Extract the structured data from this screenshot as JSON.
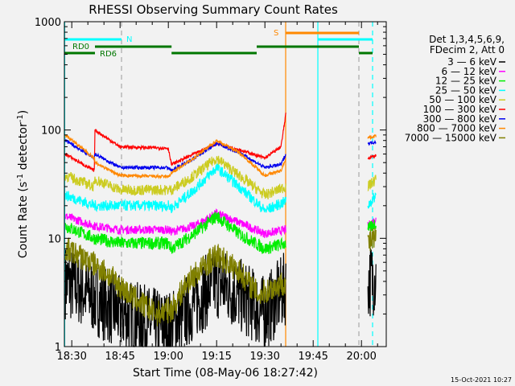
{
  "chart_data": {
    "type": "line",
    "title": "RHESSI Observing Summary Count Rates",
    "xlabel": "Start Time (08-May-06 18:27:42)",
    "ylabel_main": "Count Rate (s",
    "ylabel_sup1": "-1",
    "ylabel_mid": " detector",
    "ylabel_sup2": "-1",
    "ylabel_end": ")",
    "yscale": "log",
    "ylim": [
      1,
      1000
    ],
    "y_ticks": [
      {
        "v": 1,
        "label": "1"
      },
      {
        "v": 10,
        "label": "10"
      },
      {
        "v": 100,
        "label": "100"
      },
      {
        "v": 1000,
        "label": "1000"
      }
    ],
    "x_unit": "minutes after 18:00",
    "xlim": [
      27.7,
      127.7
    ],
    "x_ticks": [
      {
        "t": 30,
        "label": "18:30"
      },
      {
        "t": 45,
        "label": "18:45"
      },
      {
        "t": 60,
        "label": "19:00"
      },
      {
        "t": 75,
        "label": "19:15"
      },
      {
        "t": 90,
        "label": "19:30"
      },
      {
        "t": 105,
        "label": "19:45"
      },
      {
        "t": 120,
        "label": "20:00"
      }
    ],
    "legend_header": [
      "Det 1,3,4,5,6,9,",
      "FDecim 2, Att 0"
    ],
    "legend_position": "right",
    "data_segments": [
      [
        28,
        96.5
      ],
      [
        122,
        124.5
      ]
    ],
    "series": [
      {
        "name": "3 - 6 keV",
        "color": "#000000",
        "noise": 0.35,
        "key": [
          [
            28,
            4
          ],
          [
            36,
            3
          ],
          [
            45,
            2
          ],
          [
            55,
            1.6
          ],
          [
            61,
            1.5
          ],
          [
            68,
            2.5
          ],
          [
            75,
            4
          ],
          [
            82,
            3
          ],
          [
            90,
            2
          ],
          [
            96.5,
            3.5
          ],
          [
            122,
            4
          ],
          [
            124.5,
            4.5
          ]
        ]
      },
      {
        "name": "6 - 12 keV",
        "color": "#ff00ff",
        "noise": 0.04,
        "key": [
          [
            28,
            16
          ],
          [
            37,
            13
          ],
          [
            45,
            12
          ],
          [
            60,
            12
          ],
          [
            61,
            11.5
          ],
          [
            68,
            13
          ],
          [
            75,
            17
          ],
          [
            82,
            14
          ],
          [
            90,
            11
          ],
          [
            96.5,
            12
          ],
          [
            122,
            13
          ],
          [
            124.5,
            15
          ]
        ]
      },
      {
        "name": "12 - 25 keV",
        "color": "#00ee00",
        "noise": 0.06,
        "key": [
          [
            28,
            13
          ],
          [
            37,
            10
          ],
          [
            45,
            9
          ],
          [
            60,
            9
          ],
          [
            61,
            8
          ],
          [
            68,
            11
          ],
          [
            75,
            16
          ],
          [
            82,
            11
          ],
          [
            90,
            8
          ],
          [
            96.5,
            9
          ],
          [
            122,
            12
          ],
          [
            124.5,
            14
          ]
        ]
      },
      {
        "name": "25 - 50 keV",
        "color": "#00ffff",
        "noise": 0.05,
        "key": [
          [
            28,
            25
          ],
          [
            37,
            20
          ],
          [
            45,
            20
          ],
          [
            60,
            20
          ],
          [
            61,
            19
          ],
          [
            68,
            28
          ],
          [
            75,
            45
          ],
          [
            82,
            30
          ],
          [
            90,
            18
          ],
          [
            96.5,
            22
          ],
          [
            122,
            20
          ],
          [
            124.5,
            25
          ]
        ]
      },
      {
        "name": "50 - 100 keV",
        "color": "#cccc22",
        "noise": 0.05,
        "key": [
          [
            28,
            38
          ],
          [
            37,
            30
          ],
          [
            37.2,
            35
          ],
          [
            45,
            28
          ],
          [
            60,
            28
          ],
          [
            61,
            28
          ],
          [
            68,
            38
          ],
          [
            75,
            55
          ],
          [
            82,
            38
          ],
          [
            90,
            25
          ],
          [
            96.5,
            30
          ],
          [
            122,
            30
          ],
          [
            124.5,
            35
          ]
        ]
      },
      {
        "name": "100 - 300 keV",
        "color": "#ff0000",
        "noise": 0.015,
        "key": [
          [
            28,
            60
          ],
          [
            37,
            42
          ],
          [
            37.2,
            100
          ],
          [
            42,
            80
          ],
          [
            45,
            70
          ],
          [
            60,
            68
          ],
          [
            61,
            48
          ],
          [
            68,
            60
          ],
          [
            75,
            75
          ],
          [
            82,
            66
          ],
          [
            90,
            55
          ],
          [
            95,
            70
          ],
          [
            96.5,
            140
          ],
          [
            122,
            55
          ],
          [
            124.5,
            58
          ]
        ]
      },
      {
        "name": "300 - 800 keV",
        "color": "#0000ee",
        "noise": 0.015,
        "key": [
          [
            28,
            80
          ],
          [
            37,
            55
          ],
          [
            37.2,
            60
          ],
          [
            45,
            45
          ],
          [
            60,
            45
          ],
          [
            61,
            42
          ],
          [
            68,
            55
          ],
          [
            75,
            75
          ],
          [
            82,
            62
          ],
          [
            90,
            45
          ],
          [
            95,
            48
          ],
          [
            96.5,
            60
          ],
          [
            122,
            75
          ],
          [
            124.5,
            78
          ]
        ]
      },
      {
        "name": "800 - 7000 keV",
        "color": "#ff8800",
        "noise": 0.015,
        "key": [
          [
            28,
            90
          ],
          [
            37,
            55
          ],
          [
            37.2,
            50
          ],
          [
            45,
            38
          ],
          [
            60,
            37
          ],
          [
            61,
            40
          ],
          [
            68,
            55
          ],
          [
            75,
            80
          ],
          [
            82,
            62
          ],
          [
            90,
            38
          ],
          [
            95,
            42
          ],
          [
            96.5,
            55
          ],
          [
            122,
            85
          ],
          [
            124.5,
            88
          ]
        ]
      },
      {
        "name": "7000 - 15000 keV",
        "color": "#808000",
        "noise": 0.12,
        "key": [
          [
            28,
            8
          ],
          [
            36,
            6
          ],
          [
            40,
            5
          ],
          [
            48,
            3
          ],
          [
            56,
            2
          ],
          [
            61,
            2.2
          ],
          [
            66,
            4
          ],
          [
            75,
            7
          ],
          [
            82,
            5
          ],
          [
            88,
            3
          ],
          [
            96.5,
            4
          ],
          [
            122,
            9
          ],
          [
            124.5,
            10
          ]
        ]
      }
    ],
    "state_bars": [
      {
        "label": "N",
        "color": "#00ffff",
        "row": "N",
        "intervals": [
          [
            27.7,
            45.45
          ],
          [
            106.45,
            123.45
          ]
        ]
      },
      {
        "label": "S",
        "color": "#ff8800",
        "row": "S",
        "intervals": [
          [
            96.45,
            119.2
          ]
        ]
      },
      {
        "label": "RD0",
        "color": "#007700",
        "row": "RD0",
        "intervals": [
          [
            27.7,
            37.2
          ],
          [
            61,
            87.45
          ],
          [
            119.2,
            123.45
          ]
        ]
      },
      {
        "label": "RD6",
        "color": "#007700",
        "row": "RD6",
        "intervals": [
          [
            37.2,
            61
          ],
          [
            87.45,
            119.2
          ]
        ]
      }
    ],
    "markers": [
      {
        "t": 27.8,
        "color": "#00ffff",
        "style": "solid"
      },
      {
        "t": 45.45,
        "color": "#aaaaaa",
        "style": "dashed"
      },
      {
        "t": 96.45,
        "color": "#ff8800",
        "style": "solid"
      },
      {
        "t": 106.45,
        "color": "#00ffff",
        "style": "solid"
      },
      {
        "t": 119.2,
        "color": "#aaaaaa",
        "style": "dashed"
      },
      {
        "t": 123.45,
        "color": "#00ffff",
        "style": "dashed"
      }
    ]
  },
  "footer_date": "15-Oct-2021 10:27"
}
